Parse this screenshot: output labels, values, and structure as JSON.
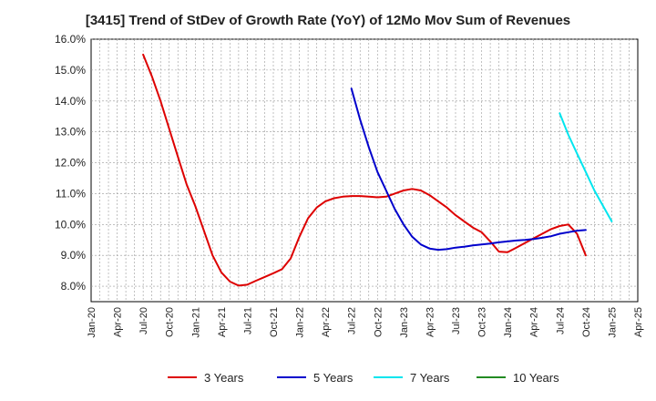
{
  "chart_data": {
    "type": "line",
    "title": "[3415]  Trend of StDev of Growth Rate (YoY) of 12Mo Mov Sum of Revenues",
    "xlabel": "",
    "ylabel": "",
    "ylim": [
      7.5,
      16.0
    ],
    "y_ticks": [
      8.0,
      9.0,
      10.0,
      11.0,
      12.0,
      13.0,
      14.0,
      15.0,
      16.0
    ],
    "y_tick_labels": [
      "8.0%",
      "9.0%",
      "10.0%",
      "11.0%",
      "12.0%",
      "13.0%",
      "14.0%",
      "15.0%",
      "16.0%"
    ],
    "x_tick_labels": [
      "Jan-20",
      "Apr-20",
      "Jul-20",
      "Oct-20",
      "Jan-21",
      "Apr-21",
      "Jul-21",
      "Oct-21",
      "Jan-22",
      "Apr-22",
      "Jul-22",
      "Oct-22",
      "Jan-23",
      "Apr-23",
      "Jul-23",
      "Oct-23",
      "Jan-24",
      "Apr-24",
      "Jul-24",
      "Oct-24",
      "Jan-25",
      "Apr-25"
    ],
    "grid": true,
    "legend_position": "bottom",
    "series": [
      {
        "name": "3 Years",
        "color": "#dd0000",
        "start": "Jul-20",
        "values": [
          15.5,
          14.8,
          14.0,
          13.1,
          12.2,
          11.3,
          10.6,
          9.8,
          9.0,
          8.45,
          8.15,
          8.02,
          8.05,
          8.18,
          8.3,
          8.42,
          8.55,
          8.9,
          9.6,
          10.2,
          10.55,
          10.75,
          10.85,
          10.9,
          10.92,
          10.92,
          10.9,
          10.88,
          10.9,
          11.0,
          11.1,
          11.15,
          11.1,
          10.95,
          10.75,
          10.55,
          10.3,
          10.1,
          9.9,
          9.75,
          9.45,
          9.12,
          9.1,
          9.25,
          9.4,
          9.55,
          9.7,
          9.85,
          9.95,
          10.0,
          9.7,
          9.0
        ]
      },
      {
        "name": "5 Years",
        "color": "#0000cc",
        "start": "Jul-22",
        "values": [
          14.4,
          13.4,
          12.5,
          11.7,
          11.1,
          10.5,
          10.0,
          9.6,
          9.35,
          9.22,
          9.18,
          9.2,
          9.25,
          9.28,
          9.32,
          9.35,
          9.38,
          9.42,
          9.45,
          9.48,
          9.5,
          9.53,
          9.57,
          9.62,
          9.7,
          9.75,
          9.8,
          9.82
        ]
      },
      {
        "name": "7 Years",
        "color": "#00e5ee",
        "start": "Jul-24",
        "values": [
          13.6,
          12.9,
          12.3,
          11.7,
          11.1,
          10.6,
          10.1
        ]
      },
      {
        "name": "10 Years",
        "color": "#228b22",
        "start": "Jul-24",
        "values": []
      }
    ]
  }
}
